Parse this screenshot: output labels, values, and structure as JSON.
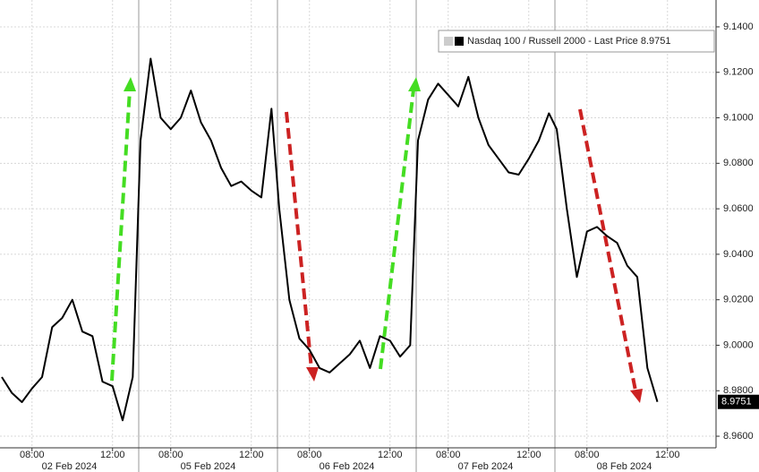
{
  "chart_data": {
    "type": "line",
    "dates": [
      "02 Feb 2024",
      "05 Feb 2024",
      "06 Feb 2024",
      "07 Feb 2024",
      "08 Feb 2024"
    ],
    "x": [
      "02 Feb 2024 06:30",
      "02 Feb 2024 07:00",
      "02 Feb 2024 07:30",
      "02 Feb 2024 08:00",
      "02 Feb 2024 08:30",
      "02 Feb 2024 09:00",
      "02 Feb 2024 09:30",
      "02 Feb 2024 10:00",
      "02 Feb 2024 10:30",
      "02 Feb 2024 11:00",
      "02 Feb 2024 11:30",
      "02 Feb 2024 12:00",
      "02 Feb 2024 12:30",
      "02 Feb 2024 13:00",
      "05 Feb 2024 06:30",
      "05 Feb 2024 07:00",
      "05 Feb 2024 07:30",
      "05 Feb 2024 08:00",
      "05 Feb 2024 08:30",
      "05 Feb 2024 09:00",
      "05 Feb 2024 09:30",
      "05 Feb 2024 10:00",
      "05 Feb 2024 10:30",
      "05 Feb 2024 11:00",
      "05 Feb 2024 11:30",
      "05 Feb 2024 12:00",
      "05 Feb 2024 12:30",
      "05 Feb 2024 13:00",
      "06 Feb 2024 06:30",
      "06 Feb 2024 07:00",
      "06 Feb 2024 07:30",
      "06 Feb 2024 08:00",
      "06 Feb 2024 08:30",
      "06 Feb 2024 09:00",
      "06 Feb 2024 09:30",
      "06 Feb 2024 10:00",
      "06 Feb 2024 10:30",
      "06 Feb 2024 11:00",
      "06 Feb 2024 11:30",
      "06 Feb 2024 12:00",
      "06 Feb 2024 12:30",
      "06 Feb 2024 13:00",
      "07 Feb 2024 06:30",
      "07 Feb 2024 07:00",
      "07 Feb 2024 07:30",
      "07 Feb 2024 08:00",
      "07 Feb 2024 08:30",
      "07 Feb 2024 09:00",
      "07 Feb 2024 09:30",
      "07 Feb 2024 10:00",
      "07 Feb 2024 10:30",
      "07 Feb 2024 11:00",
      "07 Feb 2024 11:30",
      "07 Feb 2024 12:00",
      "07 Feb 2024 12:30",
      "07 Feb 2024 13:00",
      "08 Feb 2024 06:30",
      "08 Feb 2024 07:00",
      "08 Feb 2024 07:30",
      "08 Feb 2024 08:00",
      "08 Feb 2024 08:30",
      "08 Feb 2024 09:00",
      "08 Feb 2024 09:30",
      "08 Feb 2024 10:00",
      "08 Feb 2024 10:30",
      "08 Feb 2024 11:00",
      "08 Feb 2024 11:30"
    ],
    "series": [
      {
        "name": "Nasdaq 100 / Russell 2000 - Last Price 8.9751",
        "color": "#000000",
        "values": [
          8.986,
          8.979,
          8.975,
          8.981,
          8.986,
          9.008,
          9.012,
          9.02,
          9.006,
          9.004,
          8.984,
          8.982,
          8.967,
          8.986,
          9.09,
          9.126,
          9.1,
          9.095,
          9.1,
          9.112,
          9.098,
          9.09,
          9.078,
          9.07,
          9.072,
          9.068,
          9.065,
          9.104,
          9.06,
          9.02,
          9.003,
          8.998,
          8.99,
          8.988,
          8.992,
          8.996,
          9.002,
          8.99,
          9.004,
          9.002,
          8.995,
          9.0,
          9.09,
          9.108,
          9.115,
          9.11,
          9.105,
          9.118,
          9.1,
          9.088,
          9.082,
          9.076,
          9.075,
          9.082,
          9.09,
          9.102,
          9.095,
          9.06,
          9.03,
          9.05,
          9.052,
          9.048,
          9.045,
          9.035,
          9.03,
          8.99,
          8.9751
        ]
      }
    ],
    "ylim": [
      8.9549,
      9.1518
    ],
    "yticks": [
      {
        "value": 8.96,
        "label": "8.9600"
      },
      {
        "value": 8.98,
        "label": "8.9800"
      },
      {
        "value": 9.0,
        "label": "9.0000"
      },
      {
        "value": 9.02,
        "label": "9.0200"
      },
      {
        "value": 9.04,
        "label": "9.0400"
      },
      {
        "value": 9.06,
        "label": "9.0600"
      },
      {
        "value": 9.08,
        "label": "9.0800"
      },
      {
        "value": 9.1,
        "label": "9.1000"
      },
      {
        "value": 9.12,
        "label": "9.1200"
      },
      {
        "value": 9.14,
        "label": "9.1400"
      }
    ],
    "xticks": [
      {
        "value": "02 Feb 2024 08:00",
        "label": "08:00"
      },
      {
        "value": "02 Feb 2024 12:00",
        "label": "12:00"
      },
      {
        "value": "05 Feb 2024 08:00",
        "label": "08:00"
      },
      {
        "value": "05 Feb 2024 12:00",
        "label": "12:00"
      },
      {
        "value": "06 Feb 2024 08:00",
        "label": "08:00"
      },
      {
        "value": "06 Feb 2024 12:00",
        "label": "12:00"
      },
      {
        "value": "07 Feb 2024 08:00",
        "label": "08:00"
      },
      {
        "value": "07 Feb 2024 12:00",
        "label": "12:00"
      },
      {
        "value": "08 Feb 2024 08:00",
        "label": "08:00"
      },
      {
        "value": "08 Feb 2024 12:00",
        "label": "12:00"
      }
    ],
    "grid": true
  }
}
